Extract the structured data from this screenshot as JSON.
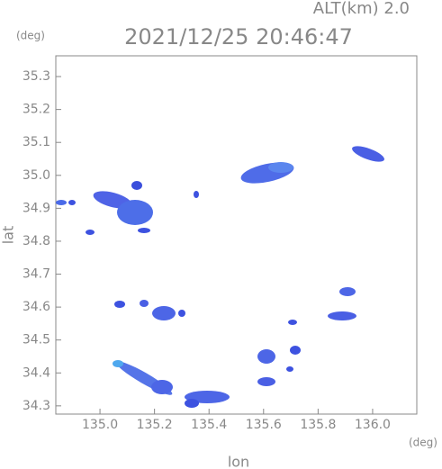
{
  "chart_data": {
    "type": "map",
    "title": "2021/12/25 20:46:47",
    "subtitle": "ALT(km) 2.0",
    "y_unit": "(deg)",
    "x_unit": "(deg)",
    "xlabel": "lon",
    "ylabel": "lat",
    "xlim": [
      134.838,
      136.162
    ],
    "ylim": [
      34.275,
      35.363
    ],
    "xticks": [
      {
        "value": 135,
        "label": "135.0"
      },
      135.2,
      135.4,
      135.6,
      135.8,
      {
        "value": 136,
        "label": "136.0"
      }
    ],
    "yticks": [
      34.3,
      34.4,
      34.5,
      34.6,
      34.7,
      34.8,
      34.9,
      {
        "value": 35,
        "label": "35.0"
      },
      35.1,
      35.2,
      35.3
    ]
  }
}
